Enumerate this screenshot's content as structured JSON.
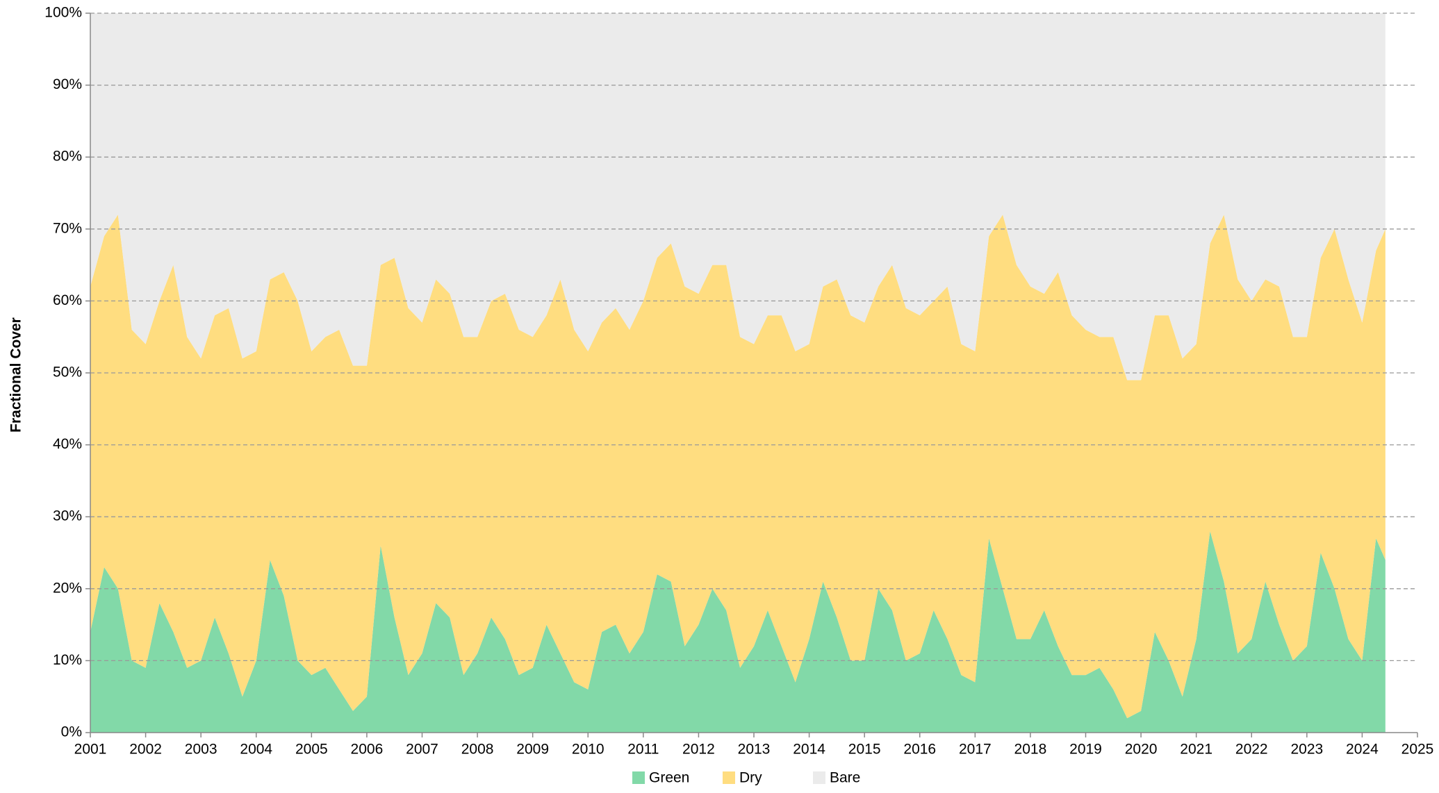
{
  "chart_data": {
    "type": "stacked-area",
    "y_label": "Fractional Cover",
    "xlim": [
      2001,
      2025
    ],
    "xticks": [
      2001,
      2002,
      2003,
      2004,
      2005,
      2006,
      2007,
      2008,
      2009,
      2010,
      2011,
      2012,
      2013,
      2014,
      2015,
      2016,
      2017,
      2018,
      2019,
      2020,
      2021,
      2022,
      2023,
      2024,
      2025
    ],
    "ylim": [
      0,
      100
    ],
    "yticks": [
      {
        "value": 0,
        "label": "0%"
      },
      {
        "value": 10,
        "label": "10%"
      },
      {
        "value": 20,
        "label": "20%"
      },
      {
        "value": 30,
        "label": "30%"
      },
      {
        "value": 40,
        "label": "40%"
      },
      {
        "value": 50,
        "label": "50%"
      },
      {
        "value": 60,
        "label": "60%"
      },
      {
        "value": 70,
        "label": "70%"
      },
      {
        "value": 80,
        "label": "80%"
      },
      {
        "value": 90,
        "label": "90%"
      },
      {
        "value": 100,
        "label": "100%"
      }
    ],
    "grid": true,
    "legend": "bottom",
    "x": [
      2001,
      2001.25,
      2001.5,
      2001.75,
      2002,
      2002.25,
      2002.5,
      2002.75,
      2003,
      2003.25,
      2003.5,
      2003.75,
      2004,
      2004.25,
      2004.5,
      2004.75,
      2005,
      2005.25,
      2005.5,
      2005.75,
      2006,
      2006.25,
      2006.5,
      2006.75,
      2007,
      2007.25,
      2007.5,
      2007.75,
      2008,
      2008.25,
      2008.5,
      2008.75,
      2009,
      2009.25,
      2009.5,
      2009.75,
      2010,
      2010.25,
      2010.5,
      2010.75,
      2011,
      2011.25,
      2011.5,
      2011.75,
      2012,
      2012.25,
      2012.5,
      2012.75,
      2013,
      2013.25,
      2013.5,
      2013.75,
      2014,
      2014.25,
      2014.5,
      2014.75,
      2015,
      2015.25,
      2015.5,
      2015.75,
      2016,
      2016.25,
      2016.5,
      2016.75,
      2017,
      2017.25,
      2017.5,
      2017.75,
      2018,
      2018.25,
      2018.5,
      2018.75,
      2019,
      2019.25,
      2019.5,
      2019.75,
      2020,
      2020.25,
      2020.5,
      2020.75,
      2021,
      2021.25,
      2021.5,
      2021.75,
      2022,
      2022.25,
      2022.5,
      2022.75,
      2023,
      2023.25,
      2023.5,
      2023.75,
      2024,
      2024.25,
      2024.42
    ],
    "series": [
      {
        "name": "Green",
        "color": "#82d9a8",
        "values": [
          14,
          23,
          20,
          10,
          9,
          18,
          14,
          9,
          10,
          16,
          11,
          5,
          10,
          24,
          19,
          10,
          8,
          9,
          6,
          3,
          5,
          26,
          16,
          8,
          11,
          18,
          16,
          8,
          11,
          16,
          13,
          8,
          9,
          15,
          11,
          7,
          6,
          14,
          15,
          11,
          14,
          22,
          21,
          12,
          15,
          20,
          17,
          9,
          12,
          17,
          12,
          7,
          13,
          21,
          16,
          10,
          10,
          20,
          17,
          10,
          11,
          17,
          13,
          8,
          7,
          27,
          20,
          13,
          13,
          17,
          12,
          8,
          8,
          9,
          6,
          2,
          3,
          14,
          10,
          5,
          13,
          28,
          21,
          11,
          13,
          21,
          15,
          10,
          12,
          25,
          20,
          13,
          10,
          27,
          24
        ]
      },
      {
        "name": "Dry",
        "color": "#ffdd80",
        "values": [
          48,
          46,
          52,
          46,
          45,
          42,
          51,
          46,
          42,
          42,
          48,
          47,
          43,
          39,
          45,
          50,
          45,
          46,
          50,
          48,
          46,
          39,
          50,
          51,
          46,
          45,
          45,
          47,
          44,
          44,
          48,
          48,
          46,
          43,
          52,
          49,
          47,
          43,
          44,
          45,
          46,
          44,
          47,
          50,
          46,
          45,
          48,
          46,
          42,
          41,
          46,
          46,
          41,
          41,
          47,
          48,
          47,
          42,
          48,
          49,
          47,
          43,
          49,
          46,
          46,
          42,
          52,
          52,
          49,
          44,
          52,
          50,
          48,
          46,
          49,
          47,
          46,
          44,
          48,
          47,
          41,
          40,
          51,
          52,
          47,
          42,
          47,
          45,
          43,
          41,
          50,
          50,
          47,
          40,
          46
        ]
      },
      {
        "name": "Bare",
        "color": "#ebebeb",
        "values": [
          38,
          31,
          28,
          44,
          46,
          40,
          35,
          45,
          48,
          42,
          41,
          48,
          47,
          37,
          36,
          40,
          47,
          45,
          44,
          49,
          49,
          35,
          34,
          41,
          43,
          37,
          39,
          45,
          45,
          40,
          39,
          44,
          45,
          42,
          37,
          44,
          47,
          43,
          41,
          44,
          40,
          34,
          32,
          38,
          39,
          35,
          35,
          45,
          46,
          42,
          42,
          47,
          46,
          38,
          37,
          42,
          43,
          38,
          35,
          41,
          42,
          40,
          38,
          46,
          47,
          31,
          28,
          35,
          38,
          39,
          36,
          42,
          44,
          45,
          45,
          51,
          51,
          42,
          42,
          48,
          46,
          32,
          28,
          37,
          40,
          37,
          38,
          45,
          45,
          34,
          30,
          37,
          43,
          33,
          30
        ]
      }
    ]
  }
}
